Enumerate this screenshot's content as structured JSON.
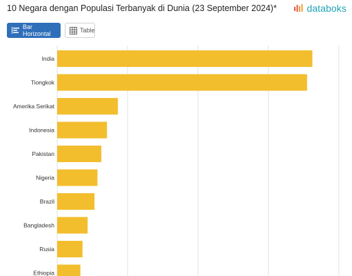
{
  "header": {
    "title": "10 Negara dengan Populasi Terbanyak di Dunia (23 September 2024)*",
    "brand": "databoks"
  },
  "toolbar": {
    "bar_label": "Bar Horizontal",
    "table_label": "Table"
  },
  "colors": {
    "bar": "#f2be2e",
    "active_button": "#2f6fba",
    "brand": "#1ea4b5",
    "grid": "#e3e3e3"
  },
  "chart_data": {
    "type": "bar",
    "orientation": "horizontal",
    "categories": [
      "India",
      "Tiongkok",
      "Amerika Serikat",
      "Indonesia",
      "Pakistan",
      "Nigeria",
      "Brazil",
      "Bangladesh",
      "Rusia",
      "Ethiopia"
    ],
    "values": [
      1450,
      1420,
      345,
      283,
      251,
      229,
      212,
      173,
      144,
      132
    ],
    "xlim": [
      0,
      2000
    ],
    "grid": true,
    "title": "10 Negara dengan Populasi Terbanyak di Dunia (23 September 2024)*"
  }
}
